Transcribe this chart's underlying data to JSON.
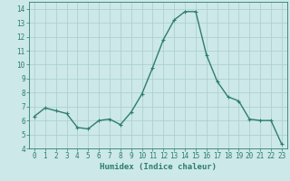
{
  "x": [
    0,
    1,
    2,
    3,
    4,
    5,
    6,
    7,
    8,
    9,
    10,
    11,
    12,
    13,
    14,
    15,
    16,
    17,
    18,
    19,
    20,
    21,
    22,
    23
  ],
  "y": [
    6.3,
    6.9,
    6.7,
    6.5,
    5.5,
    5.4,
    6.0,
    6.1,
    5.7,
    6.6,
    7.9,
    9.8,
    11.8,
    13.2,
    13.8,
    13.8,
    10.7,
    8.8,
    7.7,
    7.4,
    6.1,
    6.0,
    6.0,
    4.3
  ],
  "line_color": "#2e7d6e",
  "marker": "+",
  "marker_size": 3,
  "line_width": 1.0,
  "xlabel": "Humidex (Indice chaleur)",
  "xlim": [
    -0.5,
    23.5
  ],
  "ylim": [
    4,
    14.5
  ],
  "yticks": [
    4,
    5,
    6,
    7,
    8,
    9,
    10,
    11,
    12,
    13,
    14
  ],
  "xticks": [
    0,
    1,
    2,
    3,
    4,
    5,
    6,
    7,
    8,
    9,
    10,
    11,
    12,
    13,
    14,
    15,
    16,
    17,
    18,
    19,
    20,
    21,
    22,
    23
  ],
  "bg_color": "#cce8e8",
  "grid_color": "#aacccc",
  "tick_color": "#2e7d6e",
  "label_color": "#2e7d6e",
  "axis_color": "#2e7d6e",
  "xlabel_fontsize": 6.5,
  "tick_fontsize": 5.5
}
